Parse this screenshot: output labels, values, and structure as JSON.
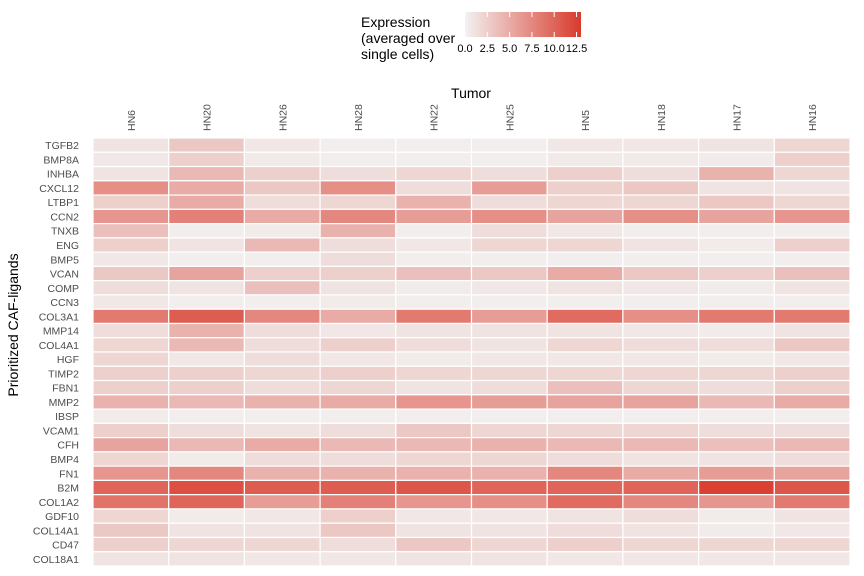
{
  "chart_data": {
    "type": "heatmap",
    "xlabel": "Tumor",
    "ylabel": "Prioritized CAF-ligands",
    "legend": {
      "title_lines": [
        "Expression",
        "(averaged over",
        "single cells)"
      ],
      "ticks": [
        "0.0",
        "2.5",
        "5.0",
        "7.5",
        "10.0",
        "12.5"
      ],
      "tick_values": [
        0,
        2.5,
        5.0,
        7.5,
        10.0,
        12.5
      ],
      "range": [
        0,
        13
      ],
      "low_color": "#f2f2f2",
      "high_color": "#d93a2b",
      "placement": "top"
    },
    "columns": [
      "HN6",
      "HN20",
      "HN26",
      "HN28",
      "HN22",
      "HN25",
      "HN5",
      "HN18",
      "HN17",
      "HN16"
    ],
    "rows": [
      "TGFB2",
      "BMP8A",
      "INHBA",
      "CXCL12",
      "LTBP1",
      "CCN2",
      "TNXB",
      "ENG",
      "BMP5",
      "VCAN",
      "COMP",
      "CCN3",
      "COL3A1",
      "MMP14",
      "COL4A1",
      "HGF",
      "TIMP2",
      "FBN1",
      "MMP2",
      "IBSP",
      "VCAM1",
      "CFH",
      "BMP4",
      "FN1",
      "B2M",
      "COL1A2",
      "GDF10",
      "COL14A1",
      "CD47",
      "COL18A1"
    ],
    "values": [
      [
        1.0,
        3.0,
        0.8,
        0.3,
        0.3,
        0.3,
        0.8,
        0.8,
        1.0,
        2.0
      ],
      [
        0.8,
        2.5,
        0.6,
        0.3,
        0.3,
        0.3,
        0.6,
        0.6,
        0.5,
        2.5
      ],
      [
        1.0,
        4.0,
        2.5,
        1.5,
        2.0,
        1.5,
        2.5,
        1.5,
        4.5,
        2.0
      ],
      [
        7.0,
        5.0,
        3.0,
        7.0,
        1.5,
        6.0,
        2.5,
        3.0,
        1.0,
        1.0
      ],
      [
        2.5,
        5.0,
        1.5,
        2.0,
        4.5,
        1.5,
        2.0,
        2.0,
        3.0,
        2.0
      ],
      [
        6.5,
        8.0,
        5.0,
        7.5,
        6.0,
        7.0,
        5.5,
        7.0,
        5.5,
        6.5
      ],
      [
        3.5,
        0.3,
        0.5,
        4.5,
        0.3,
        1.5,
        0.8,
        0.3,
        0.3,
        0.3
      ],
      [
        2.5,
        1.0,
        4.0,
        1.5,
        0.8,
        2.0,
        2.0,
        1.0,
        0.5,
        2.5
      ],
      [
        0.8,
        0.3,
        0.3,
        1.5,
        0.3,
        0.3,
        0.3,
        0.3,
        0.3,
        0.3
      ],
      [
        3.0,
        5.5,
        2.5,
        2.5,
        3.5,
        3.0,
        5.0,
        3.0,
        2.5,
        3.5
      ],
      [
        1.5,
        1.0,
        3.5,
        1.0,
        0.5,
        0.8,
        1.0,
        0.8,
        0.5,
        1.0
      ],
      [
        0.8,
        0.3,
        0.3,
        0.5,
        0.3,
        0.3,
        0.3,
        0.3,
        0.3,
        0.3
      ],
      [
        8.5,
        10.5,
        7.5,
        5.0,
        8.5,
        6.0,
        9.5,
        7.0,
        8.5,
        8.5
      ],
      [
        1.5,
        4.5,
        1.5,
        0.8,
        1.0,
        1.0,
        1.0,
        0.8,
        0.5,
        1.0
      ],
      [
        2.0,
        4.0,
        1.5,
        2.5,
        1.5,
        1.0,
        2.0,
        1.5,
        1.5,
        3.0
      ],
      [
        2.0,
        0.8,
        1.5,
        0.8,
        0.5,
        0.8,
        0.8,
        0.8,
        0.5,
        0.8
      ],
      [
        2.5,
        2.5,
        2.0,
        2.5,
        2.0,
        2.0,
        2.0,
        2.0,
        2.0,
        2.5
      ],
      [
        2.5,
        2.5,
        1.5,
        2.0,
        1.0,
        1.5,
        3.5,
        2.0,
        1.5,
        2.5
      ],
      [
        4.5,
        4.0,
        4.5,
        5.0,
        6.5,
        6.0,
        5.5,
        5.5,
        4.0,
        5.0
      ],
      [
        0.5,
        0.3,
        0.3,
        0.3,
        0.3,
        0.3,
        0.3,
        0.3,
        0.3,
        0.3
      ],
      [
        2.5,
        1.5,
        1.0,
        1.5,
        3.0,
        2.0,
        2.0,
        2.0,
        1.5,
        1.5
      ],
      [
        5.5,
        4.0,
        5.0,
        4.0,
        4.0,
        4.5,
        4.0,
        4.0,
        3.5,
        4.0
      ],
      [
        2.0,
        0.5,
        1.5,
        1.5,
        2.0,
        2.0,
        1.5,
        1.0,
        1.0,
        1.5
      ],
      [
        6.5,
        7.5,
        4.5,
        4.5,
        4.5,
        4.5,
        7.5,
        5.0,
        6.0,
        5.5
      ],
      [
        10.0,
        11.5,
        10.5,
        10.5,
        11.0,
        10.0,
        10.0,
        10.0,
        12.5,
        11.0
      ],
      [
        9.0,
        10.0,
        6.0,
        8.0,
        6.5,
        7.0,
        9.5,
        7.5,
        6.5,
        8.5
      ],
      [
        2.0,
        0.5,
        0.8,
        2.5,
        0.8,
        0.8,
        1.0,
        1.5,
        0.5,
        1.0
      ],
      [
        3.0,
        1.0,
        1.0,
        3.0,
        1.0,
        1.0,
        1.5,
        1.0,
        0.5,
        0.8
      ],
      [
        2.5,
        2.0,
        2.0,
        1.5,
        3.0,
        2.0,
        2.5,
        2.0,
        2.0,
        2.0
      ],
      [
        1.0,
        1.0,
        0.8,
        0.8,
        1.0,
        1.0,
        0.8,
        0.8,
        0.8,
        0.8
      ]
    ]
  }
}
